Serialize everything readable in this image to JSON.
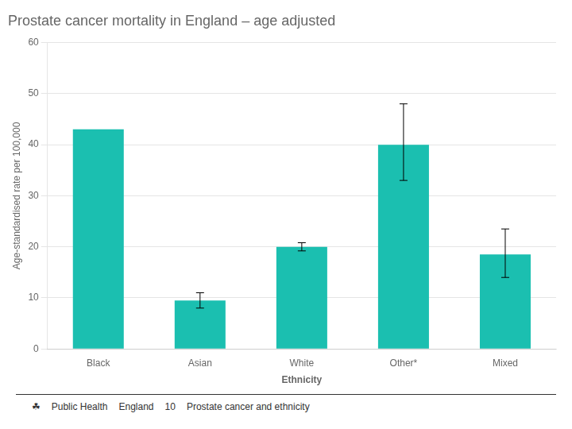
{
  "chart_data": {
    "type": "bar",
    "title": "Prostate cancer mortality in England – age adjusted",
    "categories": [
      "Black",
      "Asian",
      "White",
      "Other*",
      "Mixed"
    ],
    "values": [
      43.0,
      9.5,
      20.0,
      40.0,
      18.5
    ],
    "error_lower": [
      null,
      8.0,
      19.2,
      33.0,
      14.0
    ],
    "error_upper": [
      null,
      11.0,
      20.8,
      48.0,
      23.5
    ],
    "color": "#1bbfb0",
    "xlabel": "Ethnicity",
    "ylabel": "Age-standardised rate per 100,000",
    "ylim": [
      0,
      60
    ],
    "yticks": [
      0,
      10,
      20,
      30,
      40,
      50,
      60
    ],
    "grid": true,
    "annotations": [
      "☘",
      "Public Health",
      "England",
      "10",
      "Prostate cancer and ethnicity"
    ]
  }
}
